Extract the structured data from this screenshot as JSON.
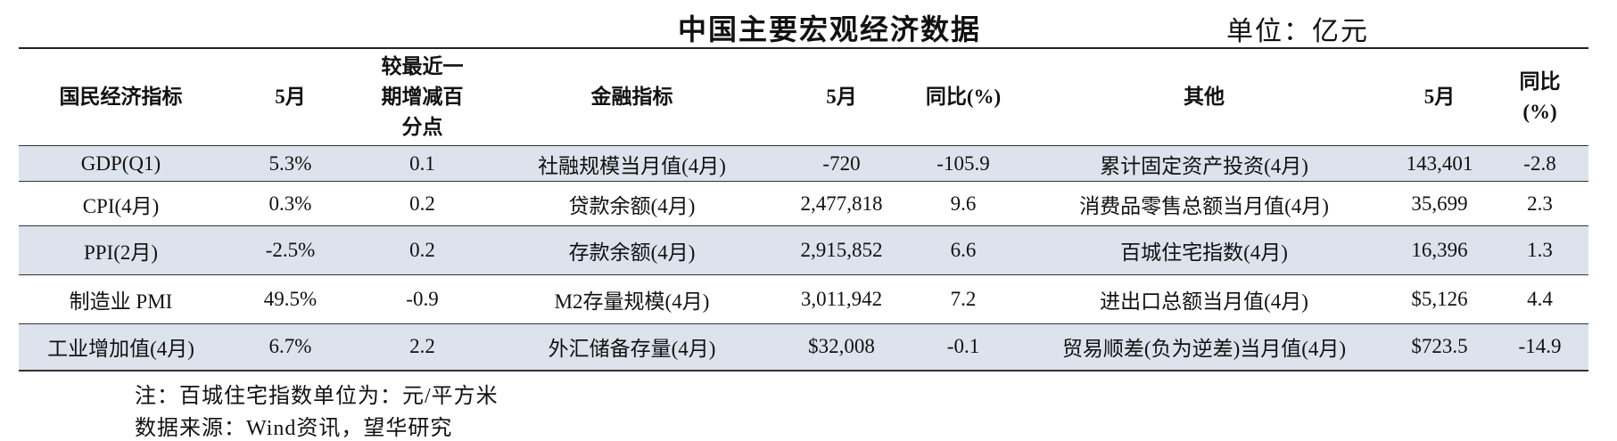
{
  "header": {
    "title": "中国主要宏观经济数据",
    "unit": "单位：亿元"
  },
  "table": {
    "columns": [
      "国民经济指标",
      "5月",
      "较最近一期增减百分点",
      "金融指标",
      "5月",
      "同比(%)",
      "其他",
      "5月",
      "同比(%)"
    ],
    "rows": [
      [
        "GDP(Q1)",
        "5.3%",
        "0.1",
        "社融规模当月值(4月)",
        "-720",
        "-105.9",
        "累计固定资产投资(4月)",
        "143,401",
        "-2.8"
      ],
      [
        "CPI(4月)",
        "0.3%",
        "0.2",
        "贷款余额(4月)",
        "2,477,818",
        "9.6",
        "消费品零售总额当月值(4月)",
        "35,699",
        "2.3"
      ],
      [
        "PPI(2月)",
        "-2.5%",
        "0.2",
        "存款余额(4月)",
        "2,915,852",
        "6.6",
        "百城住宅指数(4月)",
        "16,396",
        "1.3"
      ],
      [
        "制造业 PMI",
        "49.5%",
        "-0.9",
        "M2存量规模(4月)",
        "3,011,942",
        "7.2",
        "进出口总额当月值(4月)",
        "$5,126",
        "4.4"
      ],
      [
        "工业增加值(4月)",
        "6.7%",
        "2.2",
        "外汇储备存量(4月)",
        "$32,008",
        "-0.1",
        "贸易顺差(负为逆差)当月值(4月)",
        "$723.5",
        "-14.9"
      ]
    ]
  },
  "notes": [
    "注：百城住宅指数单位为：元/平方米",
    "数据来源：Wind资讯，望华研究"
  ]
}
